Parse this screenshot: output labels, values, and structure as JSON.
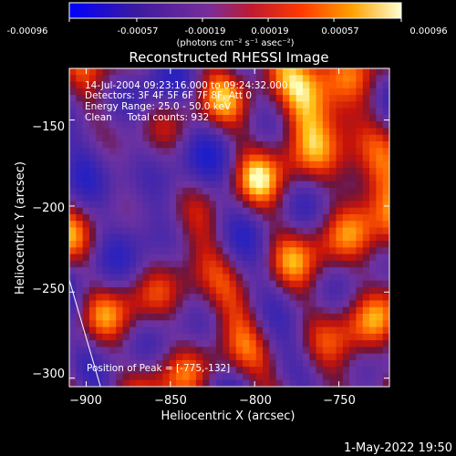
{
  "colorbar": {
    "tick_labels": [
      "-0.00096",
      "-0.00057",
      "-0.00019",
      "0.00019",
      "0.00057",
      "0.00096"
    ],
    "unit_label": "(photons cm⁻² s⁻¹ asec⁻²)",
    "min": -0.00096,
    "max": 0.00096
  },
  "chart_data": {
    "type": "heatmap",
    "title": "Reconstructed RHESSI Image",
    "xlabel": "Heliocentric X (arcsec)",
    "ylabel": "Heliocentric Y (arcsec)",
    "xlim": [
      -910,
      -720
    ],
    "ylim": [
      -305,
      -120
    ],
    "x_ticks": [
      -900,
      -850,
      -800,
      -750
    ],
    "y_ticks": [
      -150,
      -200,
      -250,
      -300
    ],
    "x_tick_labels": [
      "−900",
      "−850",
      "−800",
      "−750"
    ],
    "y_tick_labels": [
      "−150",
      "−200",
      "−250",
      "−300"
    ],
    "peak": [
      -775,
      -132
    ],
    "limb_line": [
      [
        -910,
        -243
      ],
      [
        -890,
        -310
      ]
    ],
    "annotations": [
      "14-Jul-2004 09:23:16.000 to 09:24:32.000",
      "Detectors: 3F 4F 5F 6F 7F 8F, Att 0",
      "Energy Range: 25.0 - 50.0 keV",
      "Clean     Total counts: 932"
    ],
    "peak_label": "Position of Peak = [-775,-132]"
  },
  "timestamp": "1-May-2022 19:50"
}
